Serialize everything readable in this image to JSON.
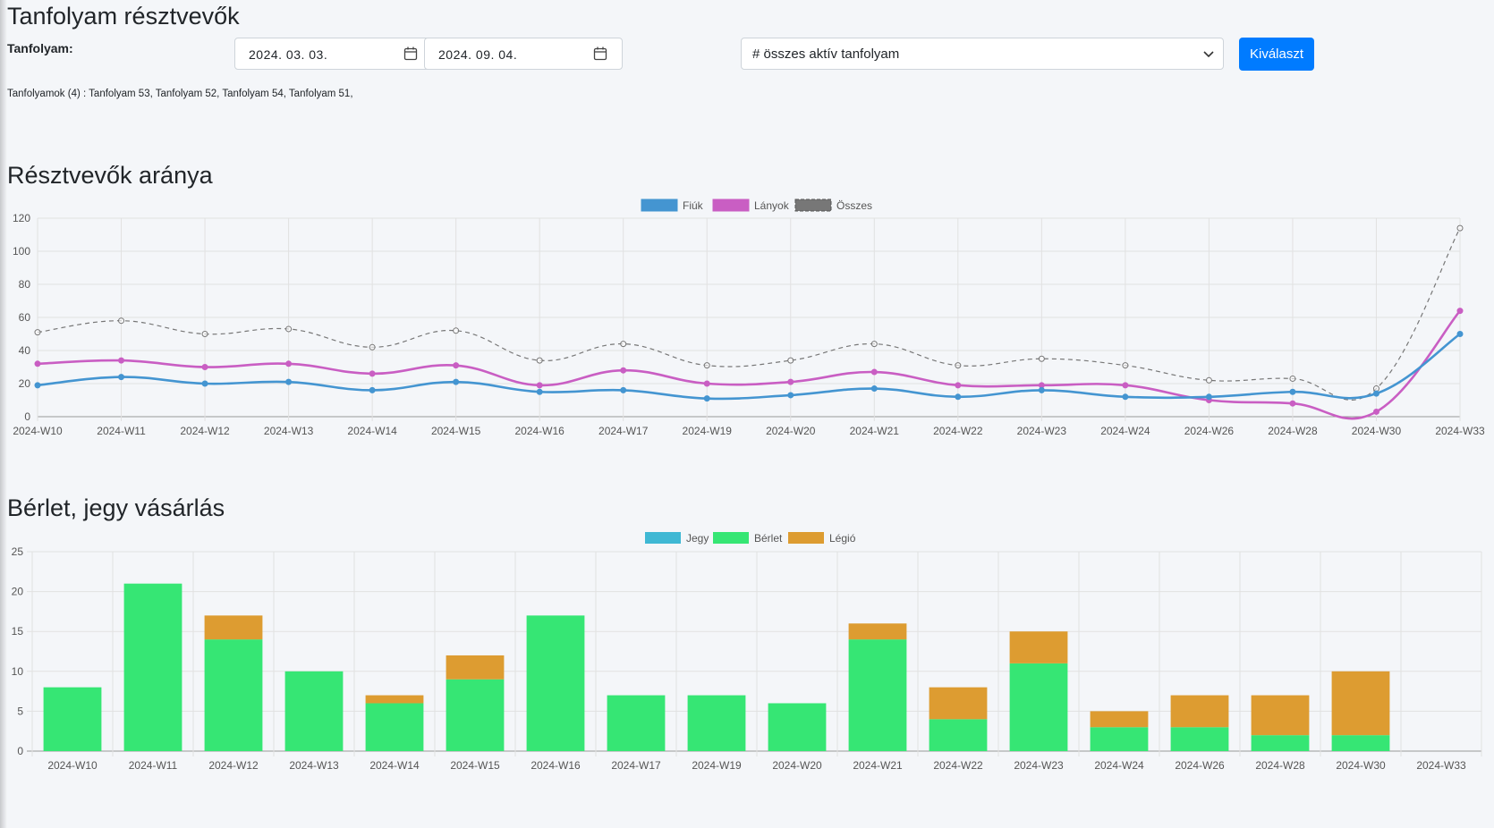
{
  "header": {
    "title": "Tanfolyam résztvevők",
    "course_label": "Tanfolyam:",
    "date_from": "2024. 03. 03.",
    "date_to": "2024. 09. 04.",
    "select_value": "# összes aktív tanfolyam",
    "submit_label": "Kiválaszt",
    "courses_text": "Tanfolyamok (4) : Tanfolyam 53, Tanfolyam 52, Tanfolyam 54, Tanfolyam 51,"
  },
  "sections": {
    "participants_title": "Résztvevők aránya",
    "purchases_title": "Bérlet, jegy vásárlás"
  },
  "chart_data": [
    {
      "type": "line",
      "categories": [
        "2024-W10",
        "2024-W11",
        "2024-W12",
        "2024-W13",
        "2024-W14",
        "2024-W15",
        "2024-W16",
        "2024-W17",
        "2024-W19",
        "2024-W20",
        "2024-W21",
        "2024-W22",
        "2024-W23",
        "2024-W24",
        "2024-W26",
        "2024-W28",
        "2024-W30",
        "2024-W33"
      ],
      "series": [
        {
          "name": "Fiúk",
          "color": "#4495d1",
          "values": [
            19,
            24,
            20,
            21,
            16,
            21,
            15,
            16,
            11,
            13,
            17,
            12,
            16,
            12,
            12,
            15,
            14,
            50
          ]
        },
        {
          "name": "Lányok",
          "color": "#c95ec3",
          "values": [
            32,
            34,
            30,
            32,
            26,
            31,
            19,
            28,
            20,
            21,
            27,
            19,
            19,
            19,
            10,
            8,
            3,
            64
          ]
        },
        {
          "name": "Összes",
          "color": "#777777",
          "dashed": true,
          "values": [
            51,
            58,
            50,
            53,
            42,
            52,
            34,
            44,
            31,
            34,
            44,
            31,
            35,
            31,
            22,
            23,
            17,
            114
          ]
        }
      ],
      "ylim": [
        0,
        120
      ],
      "yticks": [
        0,
        20,
        40,
        60,
        80,
        100,
        120
      ],
      "grid": true,
      "legend_position": "top-center"
    },
    {
      "type": "bar",
      "stacked": true,
      "categories": [
        "2024-W10",
        "2024-W11",
        "2024-W12",
        "2024-W13",
        "2024-W14",
        "2024-W15",
        "2024-W16",
        "2024-W17",
        "2024-W19",
        "2024-W20",
        "2024-W21",
        "2024-W22",
        "2024-W23",
        "2024-W24",
        "2024-W26",
        "2024-W28",
        "2024-W30",
        "2024-W33"
      ],
      "series": [
        {
          "name": "Jegy",
          "color": "#3fb8d4",
          "values": [
            0,
            0,
            0,
            0,
            0,
            0,
            0,
            0,
            0,
            0,
            0,
            0,
            0,
            0,
            0,
            0,
            0,
            0
          ]
        },
        {
          "name": "Bérlet",
          "color": "#36e674",
          "values": [
            8,
            21,
            14,
            10,
            6,
            9,
            17,
            7,
            7,
            6,
            14,
            4,
            11,
            3,
            3,
            2,
            2,
            0
          ]
        },
        {
          "name": "Légió",
          "color": "#dd9c31",
          "values": [
            0,
            0,
            3,
            0,
            1,
            3,
            0,
            0,
            0,
            0,
            2,
            4,
            4,
            2,
            4,
            5,
            8,
            0
          ]
        }
      ],
      "ylim": [
        0,
        25
      ],
      "yticks": [
        0,
        5,
        10,
        15,
        20,
        25
      ],
      "grid": true,
      "legend_position": "top-center"
    }
  ]
}
